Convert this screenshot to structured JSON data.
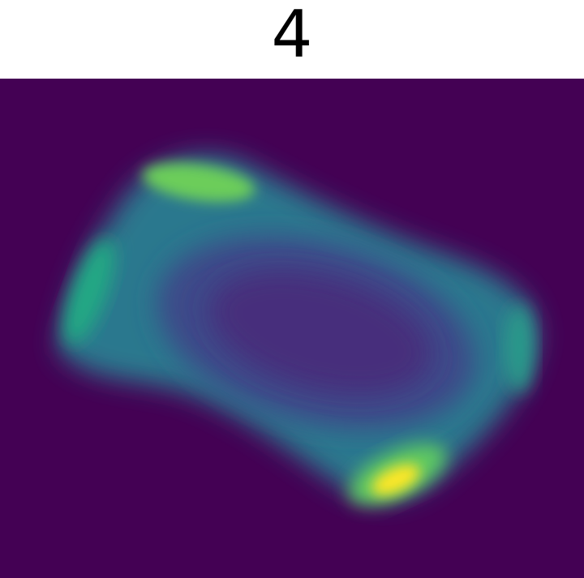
{
  "chart_data": {
    "type": "image",
    "title": "4"
  }
}
